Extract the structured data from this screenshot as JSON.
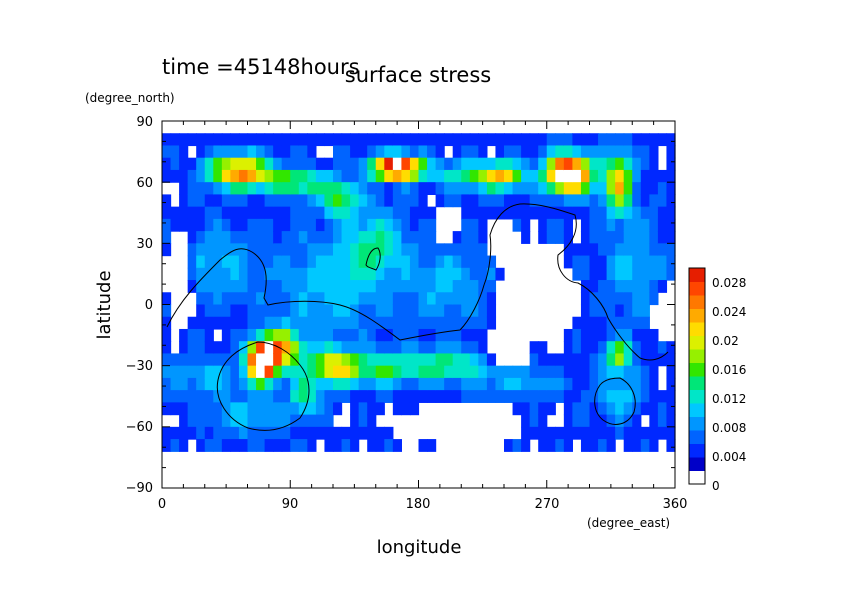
{
  "chart_data": {
    "type": "heatmap",
    "time_label": "time =45148hours",
    "title": "surface stress",
    "xlabel": "longitude",
    "ylabel": "latitude",
    "x_unit": "(degree_east)",
    "y_unit": "(degree_north)",
    "xlim": [
      0,
      360
    ],
    "ylim": [
      -90,
      90
    ],
    "x_ticks": [
      "0",
      "90",
      "180",
      "270",
      "360"
    ],
    "y_ticks": [
      "90",
      "60",
      "30",
      "0",
      "−30",
      "−60",
      "−90"
    ],
    "x_tick_values": [
      0,
      90,
      180,
      270,
      360
    ],
    "y_tick_values": [
      90,
      60,
      30,
      0,
      -30,
      -60,
      -90
    ],
    "colorbar": {
      "min": 0,
      "max": 0.03,
      "labels": [
        "0.028",
        "0.024",
        "0.02",
        "0.016",
        "0.012",
        "0.008",
        "0.004",
        "0"
      ],
      "label_values": [
        0.028,
        0.024,
        0.02,
        0.016,
        0.012,
        0.008,
        0.004,
        0
      ],
      "colors": [
        "#ffffff",
        "#0000c8",
        "#0028ff",
        "#0064ff",
        "#0096ff",
        "#00c8ff",
        "#00e6c8",
        "#00e678",
        "#32e600",
        "#96f000",
        "#dcf000",
        "#ffdc00",
        "#ffaa00",
        "#ff7800",
        "#ff4600",
        "#e61e00"
      ]
    },
    "features": [
      {
        "lon": 55,
        "lat": 65,
        "value": 0.022
      },
      {
        "lon": 165,
        "lat": 67,
        "value": 0.03
      },
      {
        "lon": 285,
        "lat": 64,
        "value": 0.032
      },
      {
        "lon": 320,
        "lat": 60,
        "value": 0.018
      },
      {
        "lon": 70,
        "lat": -28,
        "value": 0.031
      },
      {
        "lon": 120,
        "lat": -30,
        "value": 0.016
      },
      {
        "lon": 125,
        "lat": 50,
        "value": 0.014
      },
      {
        "lon": 245,
        "lat": 60,
        "value": 0.014
      },
      {
        "lon": 320,
        "lat": -25,
        "value": 0.012
      }
    ]
  }
}
